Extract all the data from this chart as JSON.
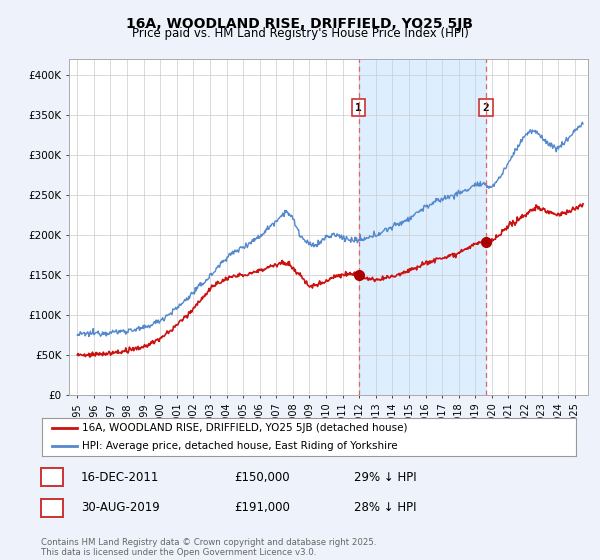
{
  "title_line1": "16A, WOODLAND RISE, DRIFFIELD, YO25 5JB",
  "title_line2": "Price paid vs. HM Land Registry's House Price Index (HPI)",
  "background_color": "#eef2fa",
  "plot_bg_color": "#ffffff",
  "legend_entry1": "16A, WOODLAND RISE, DRIFFIELD, YO25 5JB (detached house)",
  "legend_entry2": "HPI: Average price, detached house, East Riding of Yorkshire",
  "annotation1_date": "16-DEC-2011",
  "annotation1_price": "£150,000",
  "annotation1_hpi": "29% ↓ HPI",
  "annotation2_date": "30-AUG-2019",
  "annotation2_price": "£191,000",
  "annotation2_hpi": "28% ↓ HPI",
  "footer": "Contains HM Land Registry data © Crown copyright and database right 2025.\nThis data is licensed under the Open Government Licence v3.0.",
  "sale1_x": 2011.96,
  "sale1_y": 150000,
  "sale2_x": 2019.66,
  "sale2_y": 191000,
  "hpi_color": "#5588cc",
  "price_color": "#cc1111",
  "vline_color": "#dd6666",
  "shade_color": "#ddeeff",
  "marker_color": "#aa0000",
  "ylim_min": 0,
  "ylim_max": 420000,
  "xlim_min": 1994.5,
  "xlim_max": 2025.8,
  "yticks": [
    0,
    50000,
    100000,
    150000,
    200000,
    250000,
    300000,
    350000,
    400000
  ],
  "ytick_labels": [
    "£0",
    "£50K",
    "£100K",
    "£150K",
    "£200K",
    "£250K",
    "£300K",
    "£350K",
    "£400K"
  ],
  "xticks": [
    1995,
    1996,
    1997,
    1998,
    1999,
    2000,
    2001,
    2002,
    2003,
    2004,
    2005,
    2006,
    2007,
    2008,
    2009,
    2010,
    2011,
    2012,
    2013,
    2014,
    2015,
    2016,
    2017,
    2018,
    2019,
    2020,
    2021,
    2022,
    2023,
    2024,
    2025
  ]
}
